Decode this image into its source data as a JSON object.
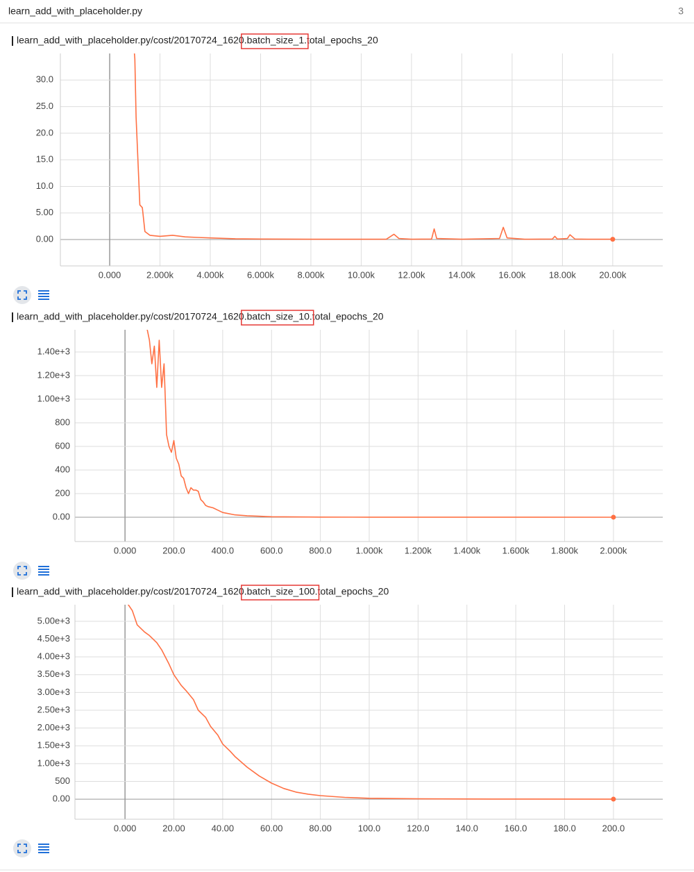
{
  "header": {
    "title": "learn_add_with_placeholder.py",
    "count": 3
  },
  "chart_data": [
    {
      "type": "line",
      "title": "learn_add_with_placeholder.py/cost/20170724_1620.batch_size_1.total_epochs_20",
      "color": "#ff7043",
      "grid": true,
      "x": [
        900,
        1000,
        1050,
        1150,
        1200,
        1300,
        1400,
        1600,
        2000,
        2500,
        3000,
        3500,
        4000,
        5000,
        6000,
        8000,
        10000,
        11000,
        11300,
        11500,
        12000,
        12800,
        12900,
        13000,
        14000,
        15500,
        15650,
        15800,
        16500,
        17600,
        17700,
        17800,
        18200,
        18300,
        18500,
        19000,
        20000
      ],
      "values": [
        40,
        34,
        23,
        12,
        6.5,
        6,
        1.5,
        0.8,
        0.6,
        0.8,
        0.5,
        0.4,
        0.3,
        0.15,
        0.1,
        0.05,
        0.05,
        0.05,
        1,
        0.2,
        0.05,
        0.1,
        2,
        0.2,
        0.05,
        0.2,
        2.3,
        0.3,
        0.05,
        0.1,
        0.6,
        0.1,
        0.2,
        0.9,
        0.1,
        0.05,
        0.05
      ],
      "xlim": [
        -1960,
        21990
      ],
      "xticks": [
        {
          "value": 0,
          "label": "0.000"
        },
        {
          "value": 2000,
          "label": "2.000k"
        },
        {
          "value": 4000,
          "label": "4.000k"
        },
        {
          "value": 6000,
          "label": "6.000k"
        },
        {
          "value": 8000,
          "label": "8.000k"
        },
        {
          "value": 10000,
          "label": "10.00k"
        },
        {
          "value": 12000,
          "label": "12.00k"
        },
        {
          "value": 14000,
          "label": "14.00k"
        },
        {
          "value": 16000,
          "label": "16.00k"
        },
        {
          "value": 18000,
          "label": "18.00k"
        },
        {
          "value": 20000,
          "label": "20.00k"
        }
      ],
      "ylim": [
        -4.96,
        35
      ],
      "yticks": [
        {
          "value": 0,
          "label": "0.00"
        },
        {
          "value": 5,
          "label": "5.00"
        },
        {
          "value": 10,
          "label": "10.0"
        },
        {
          "value": 15,
          "label": "15.0"
        },
        {
          "value": 20,
          "label": "20.0"
        },
        {
          "value": 25,
          "label": "25.0"
        },
        {
          "value": 30,
          "label": "30.0"
        }
      ]
    },
    {
      "type": "line",
      "title": "learn_add_with_placeholder.py/cost/20170724_1620.batch_size_10.total_epochs_20",
      "color": "#ff7043",
      "grid": true,
      "x": [
        90,
        100,
        110,
        120,
        130,
        140,
        150,
        160,
        170,
        180,
        190,
        200,
        210,
        220,
        230,
        240,
        250,
        260,
        270,
        280,
        290,
        300,
        310,
        320,
        330,
        340,
        360,
        380,
        400,
        450,
        500,
        550,
        600,
        700,
        800,
        1000,
        1500,
        2000
      ],
      "values": [
        1600,
        1500,
        1300,
        1450,
        1100,
        1500,
        1100,
        1300,
        700,
        600,
        550,
        650,
        500,
        450,
        350,
        330,
        250,
        200,
        250,
        230,
        230,
        220,
        150,
        130,
        100,
        90,
        80,
        60,
        40,
        20,
        12,
        8,
        4,
        2,
        1,
        0.5,
        0.2,
        0.1
      ],
      "xlim": [
        -205,
        2202
      ],
      "xticks": [
        {
          "value": 0,
          "label": "0.000"
        },
        {
          "value": 200,
          "label": "200.0"
        },
        {
          "value": 400,
          "label": "400.0"
        },
        {
          "value": 600,
          "label": "600.0"
        },
        {
          "value": 800,
          "label": "800.0"
        },
        {
          "value": 1000,
          "label": "1.000k"
        },
        {
          "value": 1200,
          "label": "1.200k"
        },
        {
          "value": 1400,
          "label": "1.400k"
        },
        {
          "value": 1600,
          "label": "1.600k"
        },
        {
          "value": 1800,
          "label": "1.800k"
        },
        {
          "value": 2000,
          "label": "2.000k"
        }
      ],
      "ylim": [
        -206,
        1588
      ],
      "yticks": [
        {
          "value": 0,
          "label": "0.00"
        },
        200,
        400,
        600,
        800,
        {
          "value": 1000,
          "label": "1.00e+3"
        },
        {
          "value": 1200,
          "label": "1.20e+3"
        },
        {
          "value": 1400,
          "label": "1.40e+3"
        }
      ]
    },
    {
      "type": "line",
      "title": "learn_add_with_placeholder.py/cost/20170724_1620.batch_size_100.total_epochs_20",
      "color": "#ff7043",
      "grid": true,
      "x": [
        1,
        3,
        5,
        8,
        10,
        13,
        15,
        18,
        20,
        23,
        25,
        28,
        30,
        33,
        35,
        38,
        40,
        43,
        45,
        50,
        55,
        60,
        65,
        70,
        75,
        80,
        90,
        100,
        120,
        150,
        200
      ],
      "values": [
        5500,
        5300,
        4900,
        4700,
        4600,
        4400,
        4200,
        3800,
        3500,
        3200,
        3050,
        2800,
        2500,
        2300,
        2050,
        1800,
        1550,
        1350,
        1200,
        900,
        650,
        450,
        300,
        200,
        140,
        100,
        50,
        25,
        10,
        3,
        1
      ],
      "xlim": [
        -20.5,
        220.2
      ],
      "xticks": [
        {
          "value": 0,
          "label": "0.000"
        },
        {
          "value": 20,
          "label": "20.00"
        },
        {
          "value": 40,
          "label": "40.00"
        },
        {
          "value": 60,
          "label": "60.00"
        },
        {
          "value": 80,
          "label": "80.00"
        },
        {
          "value": 100,
          "label": "100.0"
        },
        {
          "value": 120,
          "label": "120.0"
        },
        {
          "value": 140,
          "label": "140.0"
        },
        {
          "value": 160,
          "label": "160.0"
        },
        {
          "value": 180,
          "label": "180.0"
        },
        {
          "value": 200,
          "label": "200.0"
        }
      ],
      "ylim": [
        -564,
        5467
      ],
      "yticks": [
        {
          "value": 0,
          "label": "0.00"
        },
        500,
        {
          "value": 1000,
          "label": "1.00e+3"
        },
        {
          "value": 1500,
          "label": "1.50e+3"
        },
        {
          "value": 2000,
          "label": "2.00e+3"
        },
        {
          "value": 2500,
          "label": "2.50e+3"
        },
        {
          "value": 3000,
          "label": "3.00e+3"
        },
        {
          "value": 3500,
          "label": "3.50e+3"
        },
        {
          "value": 4000,
          "label": "4.00e+3"
        },
        {
          "value": 4500,
          "label": "4.50e+3"
        },
        {
          "value": 5000,
          "label": "5.00e+3"
        }
      ]
    }
  ]
}
